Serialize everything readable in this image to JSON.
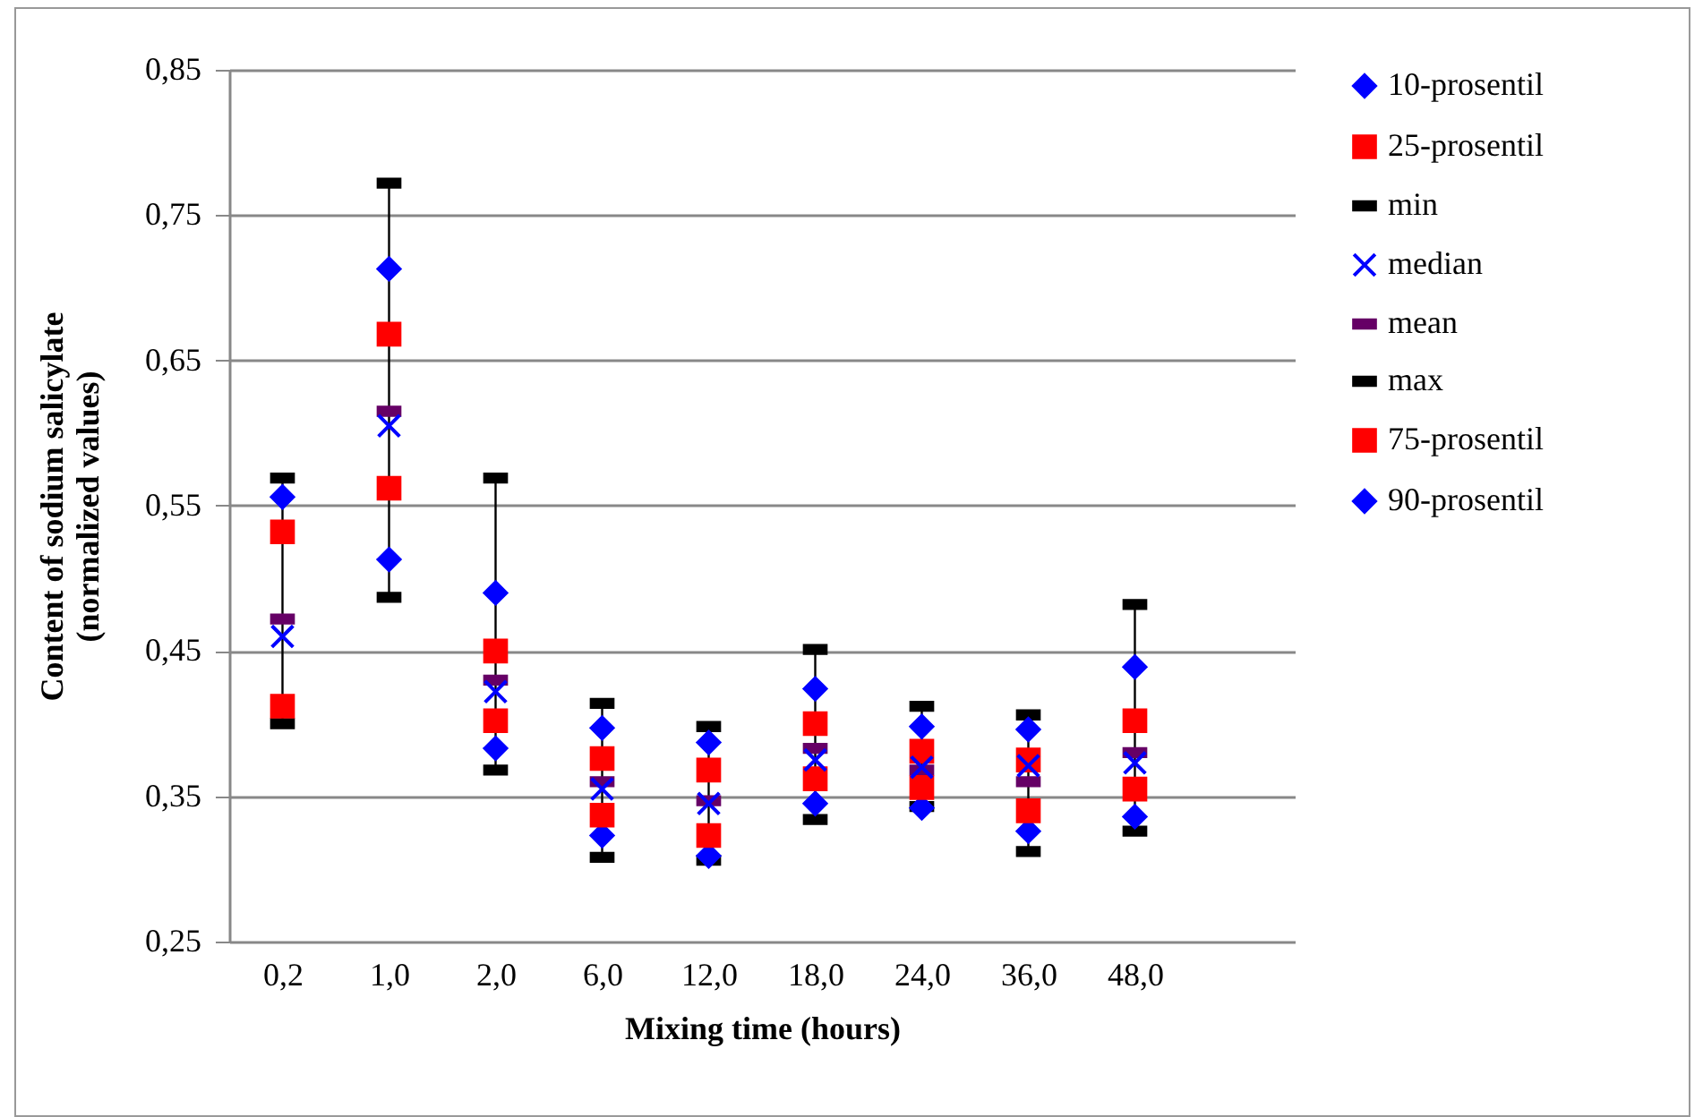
{
  "chart_data": {
    "type": "scatter",
    "xlabel": "Mixing time (hours)",
    "ylabel": "Content of sodium salicylate\n(normalized values)",
    "categories": [
      "0,2",
      "1,0",
      "2,0",
      "6,0",
      "12,0",
      "18,0",
      "24,0",
      "36,0",
      "48,0"
    ],
    "ylim": [
      0.25,
      0.85
    ],
    "yticks": [
      {
        "value": 0.25,
        "label": "0,25"
      },
      {
        "value": 0.35,
        "label": "0,35"
      },
      {
        "value": 0.45,
        "label": "0,45"
      },
      {
        "value": 0.55,
        "label": "0,55"
      },
      {
        "value": 0.65,
        "label": "0,65"
      },
      {
        "value": 0.75,
        "label": "0,75"
      },
      {
        "value": 0.85,
        "label": "0,85"
      }
    ],
    "grid": "y",
    "legend": "right",
    "series": [
      {
        "name": "10-prosentil",
        "color": "#0000ff",
        "marker": "diamond",
        "values": [
          null,
          0.513,
          0.383,
          0.323,
          0.309,
          0.345,
          0.342,
          0.326,
          0.336
        ]
      },
      {
        "name": "25-prosentil",
        "color": "#ff0000",
        "marker": "square",
        "values": [
          0.412,
          0.562,
          0.402,
          0.337,
          0.323,
          0.362,
          0.356,
          0.34,
          0.355
        ]
      },
      {
        "name": "min",
        "color": "#000000",
        "values": [
          0.4,
          0.487,
          0.368,
          0.308,
          0.306,
          0.334,
          0.343,
          0.312,
          0.326
        ]
      },
      {
        "name": "median",
        "color": "#0000ff",
        "marker": "cross",
        "values": [
          0.46,
          0.605,
          0.422,
          0.355,
          0.345,
          0.375,
          0.37,
          0.371,
          0.373
        ]
      },
      {
        "name": "mean",
        "color": "#660066",
        "values": [
          0.472,
          0.615,
          0.43,
          0.36,
          0.347,
          0.383,
          0.368,
          0.36,
          0.38
        ]
      },
      {
        "name": "max",
        "color": "#000000",
        "values": [
          0.569,
          0.772,
          0.569,
          0.414,
          0.398,
          0.451,
          0.412,
          0.406,
          0.482
        ]
      },
      {
        "name": "75-prosentil",
        "color": "#ff0000",
        "marker": "square",
        "values": [
          0.532,
          0.668,
          0.45,
          0.376,
          0.368,
          0.4,
          0.381,
          0.375,
          0.402
        ]
      },
      {
        "name": "90-prosentil",
        "color": "#0000ff",
        "marker": "diamond",
        "values": [
          0.556,
          0.713,
          0.49,
          0.397,
          0.387,
          0.424,
          0.398,
          0.396,
          0.439
        ]
      }
    ]
  }
}
